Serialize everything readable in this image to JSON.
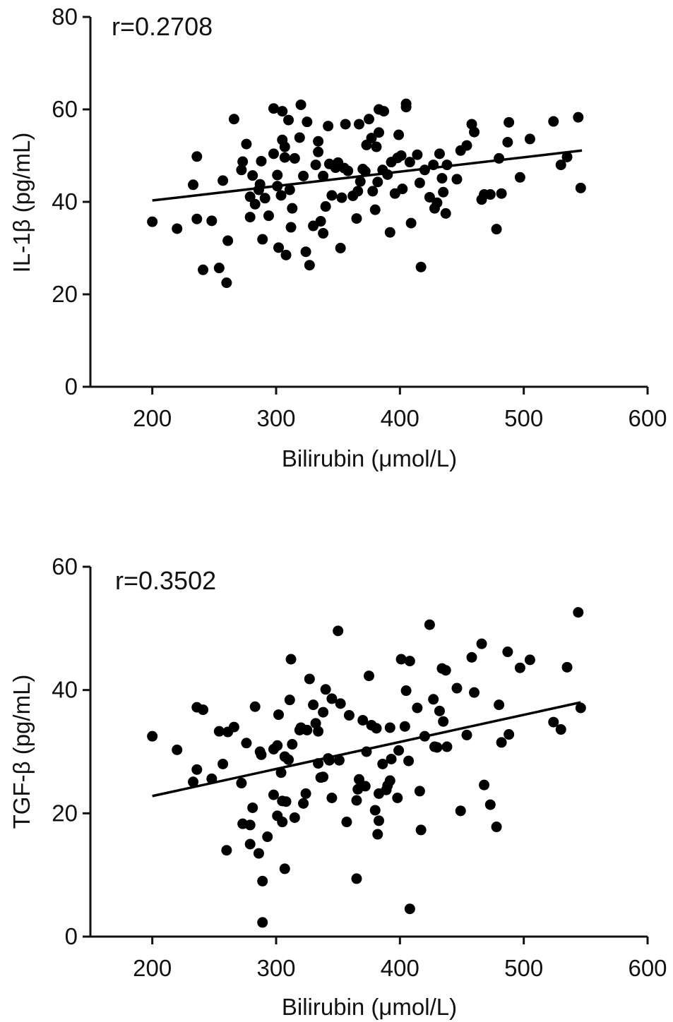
{
  "chart_data": [
    {
      "type": "scatter",
      "xlabel": "Bilirubin (μmol/L)",
      "ylabel": "IL-1β (pg/mL)",
      "annotation": "r=0.2708",
      "xlim": [
        150,
        600
      ],
      "ylim": [
        0,
        80
      ],
      "xticks": [
        "200",
        "300",
        "400",
        "500",
        "600"
      ],
      "yticks": [
        "0",
        "20",
        "40",
        "60",
        "80"
      ],
      "grid": false,
      "legend": "none",
      "color": "#000000",
      "points": [
        [
          200,
          35.7
        ],
        [
          220,
          34.2
        ],
        [
          233,
          43.7
        ],
        [
          236,
          49.8
        ],
        [
          236,
          36.3
        ],
        [
          241,
          25.3
        ],
        [
          248,
          35.9
        ],
        [
          254,
          25.7
        ],
        [
          257,
          44.6
        ],
        [
          260,
          22.5
        ],
        [
          261,
          31.6
        ],
        [
          266,
          57.9
        ],
        [
          272,
          46.9
        ],
        [
          273,
          48.7
        ],
        [
          276,
          52.5
        ],
        [
          279,
          36.7
        ],
        [
          279,
          41.1
        ],
        [
          281,
          45.7
        ],
        [
          283,
          39.5
        ],
        [
          286,
          42.6
        ],
        [
          287,
          43.8
        ],
        [
          288,
          48.8
        ],
        [
          289,
          31.9
        ],
        [
          291,
          40.8
        ],
        [
          294,
          37.0
        ],
        [
          298,
          50.4
        ],
        [
          298,
          60.2
        ],
        [
          301,
          45.8
        ],
        [
          301,
          43.4
        ],
        [
          302,
          30.1
        ],
        [
          304,
          41.4
        ],
        [
          305,
          59.6
        ],
        [
          305,
          53.4
        ],
        [
          307,
          51.9
        ],
        [
          307,
          49.6
        ],
        [
          308,
          28.5
        ],
        [
          310,
          57.7
        ],
        [
          311,
          42.6
        ],
        [
          312,
          34.5
        ],
        [
          313,
          38.6
        ],
        [
          315,
          49.4
        ],
        [
          319,
          53.9
        ],
        [
          320,
          61.0
        ],
        [
          322,
          45.6
        ],
        [
          324,
          29.2
        ],
        [
          325,
          57.3
        ],
        [
          327,
          26.3
        ],
        [
          330,
          34.8
        ],
        [
          332,
          48.0
        ],
        [
          334,
          53.1
        ],
        [
          334,
          50.8
        ],
        [
          336,
          35.8
        ],
        [
          338,
          45.6
        ],
        [
          338,
          33.2
        ],
        [
          340,
          39.0
        ],
        [
          342,
          56.4
        ],
        [
          343,
          48.2
        ],
        [
          345,
          41.4
        ],
        [
          348,
          47.4
        ],
        [
          350,
          48.5
        ],
        [
          352,
          30.0
        ],
        [
          353,
          40.9
        ],
        [
          355,
          47.3
        ],
        [
          356,
          56.8
        ],
        [
          358,
          46.7
        ],
        [
          362,
          41.3
        ],
        [
          365,
          36.4
        ],
        [
          366,
          42.3
        ],
        [
          367,
          56.8
        ],
        [
          368,
          44.4
        ],
        [
          370,
          47.1
        ],
        [
          372,
          46.6
        ],
        [
          373,
          52.3
        ],
        [
          375,
          57.9
        ],
        [
          377,
          53.8
        ],
        [
          378,
          42.3
        ],
        [
          380,
          38.3
        ],
        [
          381,
          51.9
        ],
        [
          382,
          44.3
        ],
        [
          383,
          55.0
        ],
        [
          383,
          60.0
        ],
        [
          386,
          46.9
        ],
        [
          387,
          59.6
        ],
        [
          390,
          45.9
        ],
        [
          392,
          33.4
        ],
        [
          393,
          48.6
        ],
        [
          396,
          41.8
        ],
        [
          398,
          49.5
        ],
        [
          399,
          54.5
        ],
        [
          401,
          50.0
        ],
        [
          402,
          42.8
        ],
        [
          405,
          61.2
        ],
        [
          405,
          60.5
        ],
        [
          408,
          48.6
        ],
        [
          409,
          35.4
        ],
        [
          414,
          50.2
        ],
        [
          416,
          44.1
        ],
        [
          417,
          25.9
        ],
        [
          420,
          46.9
        ],
        [
          424,
          41.0
        ],
        [
          427,
          48.0
        ],
        [
          428,
          38.6
        ],
        [
          430,
          39.8
        ],
        [
          432,
          50.4
        ],
        [
          434,
          45.1
        ],
        [
          435,
          42.1
        ],
        [
          437,
          37.5
        ],
        [
          438,
          48.0
        ],
        [
          446,
          44.9
        ],
        [
          449,
          51.1
        ],
        [
          454,
          52.2
        ],
        [
          458,
          56.8
        ],
        [
          460,
          55.1
        ],
        [
          466,
          40.5
        ],
        [
          468,
          41.6
        ],
        [
          473,
          41.6
        ],
        [
          478,
          34.1
        ],
        [
          480,
          49.4
        ],
        [
          482,
          41.8
        ],
        [
          487,
          52.9
        ],
        [
          488,
          57.2
        ],
        [
          497,
          45.3
        ],
        [
          505,
          53.6
        ],
        [
          524,
          57.4
        ],
        [
          530,
          48.0
        ],
        [
          535,
          49.7
        ],
        [
          544,
          58.3
        ],
        [
          546,
          43.0
        ]
      ],
      "trendline": {
        "x": [
          200,
          547
        ],
        "y": [
          40.3,
          51.1
        ]
      }
    },
    {
      "type": "scatter",
      "xlabel": "Bilirubin (μmol/L)",
      "ylabel": "TGF-β (pg/mL)",
      "annotation": "r=0.3502",
      "xlim": [
        150,
        600
      ],
      "ylim": [
        0,
        60
      ],
      "xticks": [
        "200",
        "300",
        "400",
        "500",
        "600"
      ],
      "yticks": [
        "0",
        "20",
        "40",
        "60"
      ],
      "grid": false,
      "legend": "none",
      "color": "#000000",
      "points": [
        [
          200,
          32.5
        ],
        [
          220,
          30.3
        ],
        [
          233,
          25.1
        ],
        [
          236,
          27.1
        ],
        [
          236,
          37.2
        ],
        [
          241,
          36.8
        ],
        [
          248,
          25.6
        ],
        [
          254,
          33.3
        ],
        [
          257,
          28.0
        ],
        [
          260,
          14.0
        ],
        [
          261,
          33.2
        ],
        [
          266,
          34.0
        ],
        [
          272,
          24.9
        ],
        [
          273,
          18.3
        ],
        [
          276,
          31.4
        ],
        [
          279,
          15.0
        ],
        [
          279,
          18.1
        ],
        [
          281,
          20.9
        ],
        [
          283,
          37.3
        ],
        [
          286,
          13.5
        ],
        [
          287,
          30.0
        ],
        [
          288,
          29.5
        ],
        [
          289,
          9.0
        ],
        [
          289,
          2.3
        ],
        [
          293,
          16.2
        ],
        [
          298,
          30.4
        ],
        [
          298,
          23.0
        ],
        [
          301,
          19.6
        ],
        [
          301,
          31.0
        ],
        [
          302,
          36.0
        ],
        [
          304,
          26.6
        ],
        [
          305,
          18.6
        ],
        [
          305,
          22.0
        ],
        [
          307,
          11.0
        ],
        [
          307,
          29.2
        ],
        [
          308,
          21.9
        ],
        [
          310,
          28.7
        ],
        [
          311,
          38.4
        ],
        [
          312,
          45.0
        ],
        [
          313,
          31.2
        ],
        [
          315,
          19.3
        ],
        [
          319,
          33.5
        ],
        [
          320,
          33.9
        ],
        [
          322,
          21.6
        ],
        [
          324,
          23.2
        ],
        [
          325,
          33.5
        ],
        [
          327,
          41.8
        ],
        [
          330,
          37.6
        ],
        [
          332,
          34.6
        ],
        [
          334,
          28.1
        ],
        [
          334,
          33.3
        ],
        [
          336,
          25.8
        ],
        [
          338,
          36.4
        ],
        [
          338,
          25.9
        ],
        [
          340,
          40.1
        ],
        [
          342,
          28.9
        ],
        [
          343,
          28.6
        ],
        [
          345,
          22.5
        ],
        [
          345,
          38.6
        ],
        [
          350,
          49.6
        ],
        [
          351,
          28.6
        ],
        [
          352,
          37.8
        ],
        [
          357,
          18.6
        ],
        [
          359,
          35.9
        ],
        [
          365,
          9.4
        ],
        [
          365,
          22.1
        ],
        [
          366,
          23.9
        ],
        [
          367,
          25.5
        ],
        [
          370,
          35.1
        ],
        [
          372,
          24.4
        ],
        [
          373,
          30.0
        ],
        [
          375,
          42.3
        ],
        [
          377,
          34.3
        ],
        [
          380,
          20.5
        ],
        [
          381,
          33.8
        ],
        [
          382,
          16.6
        ],
        [
          383,
          18.8
        ],
        [
          383,
          23.2
        ],
        [
          386,
          28.0
        ],
        [
          389,
          23.8
        ],
        [
          390,
          24.5
        ],
        [
          392,
          25.3
        ],
        [
          392,
          33.9
        ],
        [
          393,
          28.8
        ],
        [
          398,
          22.5
        ],
        [
          399,
          30.2
        ],
        [
          401,
          45.0
        ],
        [
          404,
          34.1
        ],
        [
          405,
          39.9
        ],
        [
          407,
          28.5
        ],
        [
          408,
          44.7
        ],
        [
          408,
          4.5
        ],
        [
          414,
          37.1
        ],
        [
          416,
          23.6
        ],
        [
          417,
          17.3
        ],
        [
          420,
          32.5
        ],
        [
          424,
          50.6
        ],
        [
          427,
          38.5
        ],
        [
          428,
          30.8
        ],
        [
          430,
          30.7
        ],
        [
          432,
          36.6
        ],
        [
          434,
          43.5
        ],
        [
          435,
          34.9
        ],
        [
          437,
          43.2
        ],
        [
          438,
          30.8
        ],
        [
          446,
          40.3
        ],
        [
          449,
          20.4
        ],
        [
          454,
          32.7
        ],
        [
          458,
          45.3
        ],
        [
          460,
          39.6
        ],
        [
          466,
          47.5
        ],
        [
          468,
          24.6
        ],
        [
          473,
          21.4
        ],
        [
          478,
          17.8
        ],
        [
          480,
          37.6
        ],
        [
          482,
          31.5
        ],
        [
          487,
          46.2
        ],
        [
          488,
          32.8
        ],
        [
          497,
          43.6
        ],
        [
          505,
          44.9
        ],
        [
          524,
          34.8
        ],
        [
          530,
          33.6
        ],
        [
          535,
          43.7
        ],
        [
          544,
          52.6
        ],
        [
          546,
          37.1
        ]
      ],
      "trendline": {
        "x": [
          200,
          546
        ],
        "y": [
          22.8,
          38.0
        ]
      }
    }
  ]
}
